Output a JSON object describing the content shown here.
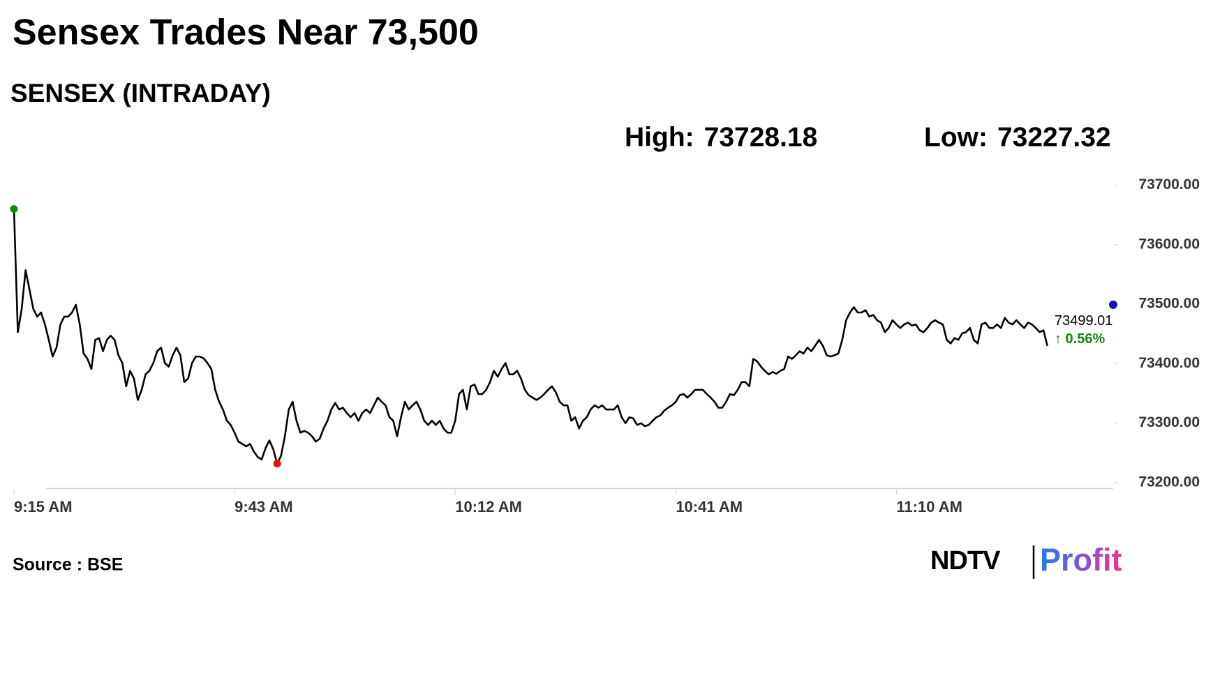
{
  "chart_data": {
    "type": "line",
    "title": "Sensex Trades Near 73,500",
    "subtitle": "SENSEX (INTRADAY)",
    "high_label": "High:",
    "high": 73728.18,
    "low_label": "Low:",
    "low": 73227.32,
    "categories": [
      "9:15 AM",
      null,
      null,
      null,
      null,
      null,
      null,
      null,
      null,
      null,
      null,
      null,
      null,
      null,
      null,
      null,
      null,
      null,
      null,
      null,
      null,
      null,
      null,
      null,
      null,
      null,
      null,
      null,
      null,
      null,
      null,
      null,
      null,
      null,
      null,
      null,
      null,
      null,
      null,
      null,
      null,
      null,
      null,
      null,
      null,
      null,
      null,
      null,
      null,
      null,
      null,
      null,
      null,
      null,
      null,
      null,
      null,
      "9:43 AM",
      null,
      null,
      null,
      null,
      null,
      null,
      null,
      null,
      null,
      null,
      null,
      null,
      null,
      null,
      null,
      null,
      null,
      null,
      null,
      null,
      null,
      null,
      null,
      null,
      null,
      null,
      null,
      null,
      null,
      null,
      null,
      null,
      null,
      null,
      null,
      null,
      null,
      null,
      null,
      null,
      null,
      null,
      null,
      null,
      null,
      null,
      null,
      null,
      null,
      null,
      null,
      null,
      null,
      null,
      null,
      null,
      "10:12 AM",
      null,
      null,
      null,
      null,
      null,
      null,
      null,
      null,
      null,
      null,
      null,
      null,
      null,
      null,
      null,
      null,
      null,
      null,
      null,
      null,
      null,
      null,
      null,
      null,
      null,
      null,
      null,
      null,
      null,
      null,
      null,
      null,
      null,
      null,
      null,
      null,
      null,
      null,
      null,
      null,
      null,
      null,
      null,
      null,
      null,
      null,
      null,
      null,
      null,
      null,
      null,
      null,
      null,
      null,
      null,
      null,
      "10:41 AM",
      null,
      null,
      null,
      null,
      null,
      null,
      null,
      null,
      null,
      null,
      null,
      null,
      null,
      null,
      null,
      null,
      null,
      null,
      null,
      null,
      null,
      null,
      null,
      null,
      null,
      null,
      null,
      null,
      null,
      null,
      null,
      null,
      null,
      null,
      null,
      null,
      null,
      null,
      null,
      null,
      null,
      null,
      null,
      null,
      null,
      null,
      null,
      null,
      null,
      null,
      null,
      null,
      null,
      null,
      null,
      null,
      "11:10 AM",
      null,
      null,
      null,
      null,
      null,
      null,
      null,
      null,
      null,
      null,
      null,
      null,
      null,
      null,
      null,
      null,
      null,
      null,
      null,
      null,
      null,
      null,
      null,
      null,
      null,
      null,
      null,
      null,
      null,
      null,
      null,
      null,
      null,
      null,
      null,
      null,
      null,
      null,
      null,
      null,
      null,
      null,
      null,
      null,
      null,
      null,
      null,
      null,
      null,
      null,
      null,
      null,
      null,
      null,
      null,
      null
    ],
    "series": [
      {
        "color": "#000000",
        "values": [
          73660,
          73453,
          73492,
          73557,
          73525,
          73492,
          73479,
          73486,
          73466,
          73440,
          73412,
          73427,
          73466,
          73479,
          73479,
          73486,
          73499,
          73466,
          73417,
          73408,
          73391,
          73440,
          73443,
          73421,
          73440,
          73447,
          73440,
          73414,
          73401,
          73362,
          73388,
          73375,
          73339,
          73356,
          73382,
          73388,
          73401,
          73421,
          73427,
          73401,
          73395,
          73414,
          73427,
          73414,
          73369,
          73375,
          73401,
          73412,
          73412,
          73409,
          73401,
          73391,
          73356,
          73336,
          73323,
          73304,
          73297,
          73284,
          73269,
          73265,
          73261,
          73265,
          73252,
          73243,
          73239,
          73258,
          73271,
          73256,
          73232,
          73245,
          73278,
          73323,
          73336,
          73304,
          73284,
          73287,
          73284,
          73278,
          73269,
          73274,
          73291,
          73304,
          73323,
          73334,
          73323,
          73326,
          73317,
          73310,
          73317,
          73304,
          73317,
          73323,
          73317,
          73330,
          73343,
          73336,
          73330,
          73310,
          73304,
          73278,
          73310,
          73336,
          73323,
          73330,
          73336,
          73323,
          73304,
          73297,
          73304,
          73297,
          73304,
          73291,
          73284,
          73284,
          73304,
          73349,
          73356,
          73323,
          73362,
          73365,
          73349,
          73349,
          73356,
          73369,
          73388,
          73378,
          73391,
          73401,
          73382,
          73382,
          73388,
          73375,
          73356,
          73347,
          73343,
          73339,
          73343,
          73349,
          73356,
          73362,
          73352,
          73336,
          73330,
          73330,
          73304,
          73310,
          73291,
          73304,
          73310,
          73323,
          73330,
          73326,
          73330,
          73323,
          73323,
          73323,
          73330,
          73310,
          73300,
          73310,
          73308,
          73297,
          73300,
          73295,
          73297,
          73304,
          73310,
          73313,
          73321,
          73326,
          73330,
          73336,
          73347,
          73349,
          73343,
          73349,
          73356,
          73356,
          73356,
          73349,
          73343,
          73336,
          73326,
          73326,
          73336,
          73349,
          73347,
          73356,
          73369,
          73369,
          73362,
          73408,
          73404,
          73395,
          73388,
          73382,
          73386,
          73383,
          73388,
          73391,
          73412,
          73408,
          73414,
          73421,
          73417,
          73427,
          73421,
          73430,
          73440,
          73430,
          73414,
          73412,
          73414,
          73417,
          73440,
          73473,
          73486,
          73495,
          73486,
          73486,
          73490,
          73479,
          73482,
          73473,
          73469,
          73453,
          73460,
          73473,
          73466,
          73460,
          73466,
          73469,
          73464,
          73466,
          73456,
          73453,
          73460,
          73469,
          73473,
          73469,
          73466,
          73440,
          73434,
          73443,
          73440,
          73451,
          73453,
          73460,
          73440,
          73434,
          73466,
          73469,
          73460,
          73460,
          73466,
          73460,
          73477,
          73469,
          73466,
          73473,
          73466,
          73460,
          73469,
          73466,
          73460,
          73453,
          73456,
          73430,
          null,
          null,
          null,
          null,
          null,
          null,
          null,
          null,
          null,
          null,
          null,
          null,
          null,
          null,
          null,
          null,
          null
        ]
      }
    ],
    "ylim": [
      73190,
      73720
    ],
    "yticks": [
      {
        "value": 73200,
        "label": "73200.00"
      },
      {
        "value": 73300,
        "label": "73300.00"
      },
      {
        "value": 73400,
        "label": "73400.00"
      },
      {
        "value": 73500,
        "label": "73500.00"
      },
      {
        "value": 73600,
        "label": "73600.00"
      },
      {
        "value": 73700,
        "label": "73700.00"
      }
    ],
    "last_value": 73499.01,
    "change_label": "↑ 0.56%",
    "change_color": "#118a11",
    "start_color": "#118a11",
    "low_color": "#ee1111",
    "last_color": "#1111bb",
    "source": "Source : BSE",
    "brand": [
      "NDTV",
      "Profit"
    ]
  }
}
